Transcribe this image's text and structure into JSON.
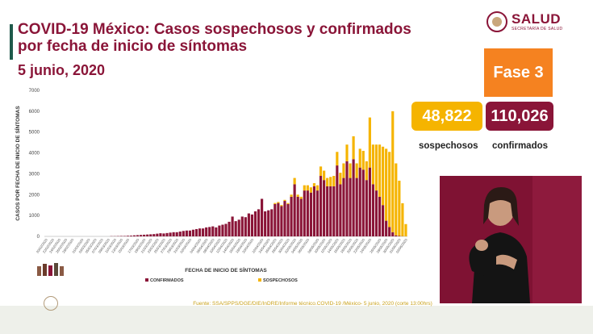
{
  "header": {
    "title": "COVID-19 México: Casos sospechosos y confirmados por fecha de inicio de síntomas",
    "date": "5 junio, 2020"
  },
  "logo": {
    "name": "SALUD",
    "subtitle": "SECRETARÍA DE SALUD"
  },
  "phase": {
    "label": "Fase 3"
  },
  "stats": {
    "suspected_value": "48,822",
    "suspected_label": "sospechosos",
    "confirmed_value": "110,026",
    "confirmed_label": "confirmados"
  },
  "colors": {
    "confirmed": "#8a1538",
    "suspected": "#f5b400",
    "phase": "#f58220",
    "accent": "#1f5a4b"
  },
  "footer": {
    "source": "Fuente: SSA/SPPS/DGE/DIE/InDRE/Informe técnico.COVID-19 /México- 5 junio, 2020 (corte 13:00hrs)"
  },
  "chart_data": {
    "type": "bar",
    "stacked": true,
    "title": "",
    "xlabel": "FECHA DE INICIO DE SÍNTOMAS",
    "ylabel": "CASOS POR FECHA DE INICIO DE SÍNTOMAS",
    "ylim": [
      0,
      7000
    ],
    "yticks": [
      0,
      1000,
      2000,
      3000,
      4000,
      5000,
      6000,
      7000
    ],
    "legend": {
      "placement": "bottom",
      "entries": [
        "CONFIRMADOS",
        "SOSPECHOSOS"
      ]
    },
    "grid": false,
    "x_tick_labels": [
      "20/02/2020",
      "22/02/2020",
      "24/02/2020",
      "26/02/2020",
      "28/02/2020",
      "01/03/2020",
      "03/03/2020",
      "05/03/2020",
      "07/03/2020",
      "09/03/2020",
      "11/03/2020",
      "13/03/2020",
      "15/03/2020",
      "17/03/2020",
      "19/03/2020",
      "21/03/2020",
      "23/03/2020",
      "25/03/2020",
      "27/03/2020",
      "29/03/2020",
      "31/03/2020",
      "02/04/2020",
      "04/04/2020",
      "06/04/2020",
      "08/04/2020",
      "10/04/2020",
      "12/04/2020",
      "14/04/2020",
      "16/04/2020",
      "18/04/2020",
      "20/04/2020",
      "22/04/2020",
      "24/04/2020",
      "26/04/2020",
      "28/04/2020",
      "30/04/2020",
      "02/05/2020",
      "04/05/2020",
      "06/05/2020",
      "08/05/2020",
      "10/05/2020",
      "12/05/2020",
      "14/05/2020",
      "16/05/2020",
      "18/05/2020",
      "20/05/2020",
      "22/05/2020",
      "24/05/2020",
      "26/05/2020",
      "28/05/2020",
      "30/05/2020",
      "01/06/2020",
      "03/06/2020"
    ],
    "series": [
      {
        "name": "CONFIRMADOS",
        "values": [
          0,
          0,
          0,
          0,
          0,
          0,
          0,
          0,
          0,
          0,
          0,
          0,
          0,
          0,
          0,
          0,
          0,
          0,
          0,
          0,
          10,
          10,
          15,
          20,
          20,
          30,
          35,
          50,
          60,
          70,
          80,
          90,
          100,
          110,
          130,
          150,
          140,
          160,
          180,
          200,
          200,
          230,
          260,
          280,
          280,
          320,
          350,
          380,
          380,
          430,
          450,
          480,
          430,
          520,
          560,
          600,
          700,
          950,
          730,
          800,
          950,
          920,
          1100,
          1050,
          1200,
          1300,
          1800,
          1200,
          1250,
          1300,
          1550,
          1600,
          1450,
          1700,
          1550,
          1900,
          2500,
          1900,
          1800,
          2200,
          2200,
          2100,
          2400,
          2200,
          2900,
          2700,
          2400,
          2400,
          2400,
          3400,
          2500,
          2800,
          3600,
          2800,
          3700,
          2800,
          3300,
          3200,
          2700,
          3300,
          2500,
          2200,
          1900,
          1500,
          750,
          450,
          200,
          50,
          20,
          10
        ],
        "comment_none": ""
      },
      {
        "name": "SOSPECHOSOS",
        "values": [
          0,
          0,
          0,
          0,
          0,
          0,
          0,
          0,
          0,
          0,
          0,
          0,
          0,
          0,
          0,
          0,
          0,
          0,
          0,
          0,
          0,
          0,
          0,
          0,
          0,
          0,
          0,
          0,
          0,
          0,
          0,
          0,
          0,
          0,
          0,
          0,
          0,
          0,
          0,
          0,
          0,
          0,
          0,
          0,
          0,
          0,
          0,
          0,
          0,
          0,
          0,
          0,
          0,
          0,
          0,
          0,
          0,
          0,
          0,
          0,
          0,
          0,
          0,
          0,
          0,
          0,
          0,
          0,
          0,
          0,
          50,
          50,
          50,
          50,
          50,
          100,
          300,
          100,
          100,
          250,
          250,
          250,
          150,
          250,
          450,
          450,
          400,
          450,
          500,
          650,
          550,
          700,
          800,
          700,
          1100,
          700,
          900,
          900,
          900,
          2400,
          1900,
          2200,
          2500,
          2800,
          3450,
          3600,
          5800,
          3450,
          2650,
          1580,
          590
        ]
      }
    ]
  }
}
